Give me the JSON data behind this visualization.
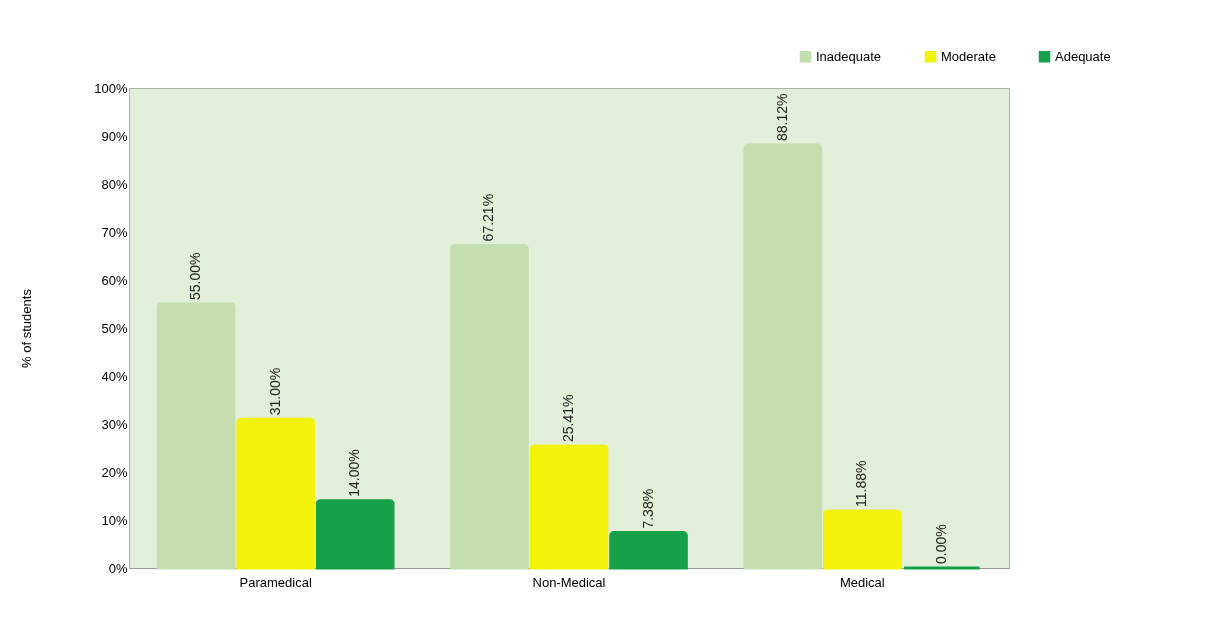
{
  "chart_data": {
    "type": "bar",
    "ylabel": "% of students",
    "categories": [
      "Paramedical",
      "Non-Medical",
      "Medical"
    ],
    "series": [
      {
        "name": "Inadequate",
        "color": "#c5deb0",
        "values": [
          55.0,
          67.21,
          88.12
        ],
        "value_labels": [
          "55.00%",
          "67.21%",
          "88.12%"
        ]
      },
      {
        "name": "Moderate",
        "color": "#f2f20a",
        "values": [
          31.0,
          25.41,
          11.88
        ],
        "value_labels": [
          "31.00%",
          "25.41%",
          "11.88%"
        ]
      },
      {
        "name": "Adequate",
        "color": "#17a04a",
        "values": [
          14.0,
          7.38,
          0.0
        ],
        "value_labels": [
          "14.00%",
          "7.38%",
          "0.00%"
        ]
      }
    ],
    "ylim": [
      0,
      100
    ],
    "yticks": [
      {
        "value": 0,
        "label": "0%"
      },
      {
        "value": 10,
        "label": "10%"
      },
      {
        "value": 20,
        "label": "20%"
      },
      {
        "value": 30,
        "label": "30%"
      },
      {
        "value": 40,
        "label": "40%"
      },
      {
        "value": 50,
        "label": "50%"
      },
      {
        "value": 60,
        "label": "60%"
      },
      {
        "value": 70,
        "label": "70%"
      },
      {
        "value": 80,
        "label": "80%"
      },
      {
        "value": 90,
        "label": "90%"
      },
      {
        "value": 100,
        "label": "100%"
      }
    ],
    "legend": "top right",
    "grid": false
  }
}
